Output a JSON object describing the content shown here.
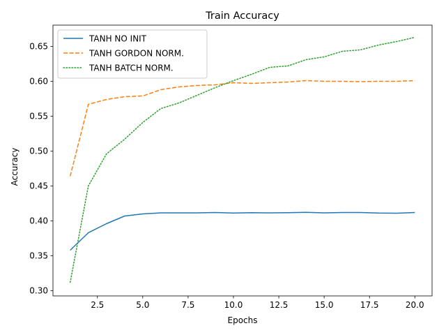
{
  "chart_data": {
    "type": "line",
    "title": "Train Accuracy",
    "xlabel": "Epochs",
    "ylabel": "Accuracy",
    "xlim": [
      0.05,
      20.95
    ],
    "ylim": [
      0.2925,
      0.6805
    ],
    "xticks": [
      2.5,
      5.0,
      7.5,
      10.0,
      12.5,
      15.0,
      17.5,
      20.0
    ],
    "xtick_labels": [
      "2.5",
      "5.0",
      "7.5",
      "10.0",
      "12.5",
      "15.0",
      "17.5",
      "20.0"
    ],
    "yticks": [
      0.3,
      0.35,
      0.4,
      0.45,
      0.5,
      0.55,
      0.6,
      0.65
    ],
    "ytick_labels": [
      "0.30",
      "0.35",
      "0.40",
      "0.45",
      "0.50",
      "0.55",
      "0.60",
      "0.65"
    ],
    "grid": false,
    "legend_position": "top-left",
    "x": [
      1,
      2,
      3,
      4,
      5,
      6,
      7,
      8,
      9,
      10,
      11,
      12,
      13,
      14,
      15,
      16,
      17,
      18,
      19,
      20
    ],
    "series": [
      {
        "name": "TANH NO INIT",
        "color": "#1f77b4",
        "style": "solid",
        "values": [
          0.358,
          0.383,
          0.396,
          0.407,
          0.41,
          0.4115,
          0.4115,
          0.4115,
          0.412,
          0.4112,
          0.4117,
          0.4115,
          0.4118,
          0.4122,
          0.4115,
          0.412,
          0.412,
          0.4112,
          0.411,
          0.412
        ]
      },
      {
        "name": "TANH GORDON NORM.",
        "color": "#ff7f0e",
        "style": "dashed",
        "values": [
          0.464,
          0.567,
          0.574,
          0.578,
          0.579,
          0.588,
          0.592,
          0.594,
          0.595,
          0.598,
          0.597,
          0.598,
          0.599,
          0.601,
          0.6,
          0.6,
          0.5995,
          0.6,
          0.6,
          0.601
        ]
      },
      {
        "name": "TANH BATCH NORM.",
        "color": "#2ca02c",
        "style": "dotted",
        "values": [
          0.312,
          0.45,
          0.496,
          0.517,
          0.541,
          0.561,
          0.569,
          0.58,
          0.591,
          0.601,
          0.61,
          0.62,
          0.622,
          0.631,
          0.635,
          0.643,
          0.645,
          0.652,
          0.657,
          0.663
        ]
      }
    ]
  }
}
